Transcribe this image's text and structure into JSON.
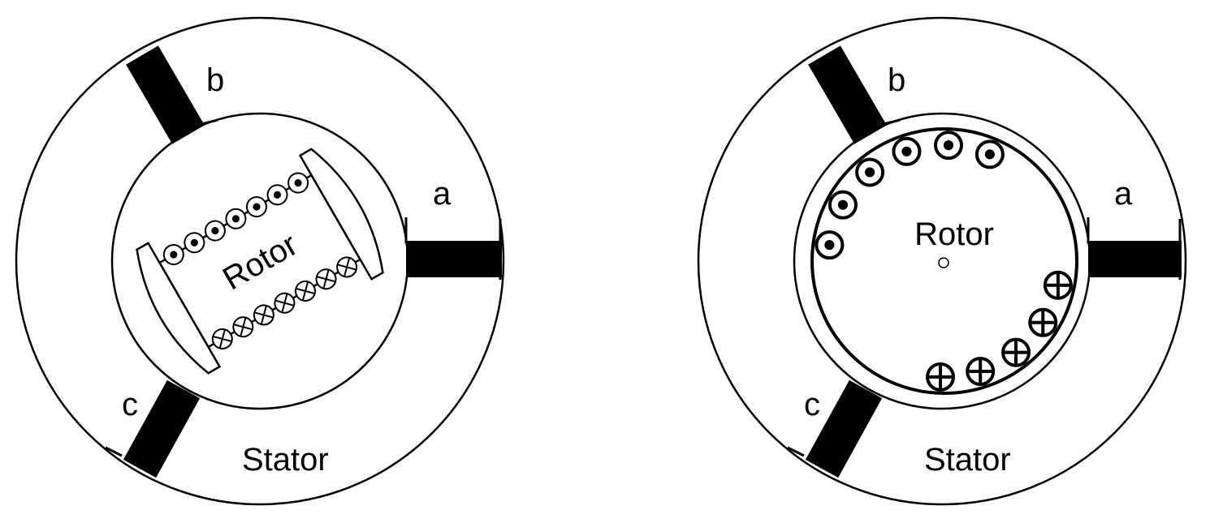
{
  "colors": {
    "ink": "#000000",
    "background": "#ffffff"
  },
  "left_machine": {
    "phase_a": "a",
    "phase_b": "b",
    "phase_c": "c",
    "stator_label": "Stator",
    "rotor_label": "Rotor",
    "rotor_type": "salient-pole",
    "conductors_out_count": 7,
    "conductors_in_count": 7
  },
  "right_machine": {
    "phase_a": "a",
    "phase_b": "b",
    "phase_c": "c",
    "stator_label": "Stator",
    "rotor_label": "Rotor",
    "rotor_type": "cylindrical",
    "conductors_out_count": 6,
    "conductors_in_count": 5
  }
}
